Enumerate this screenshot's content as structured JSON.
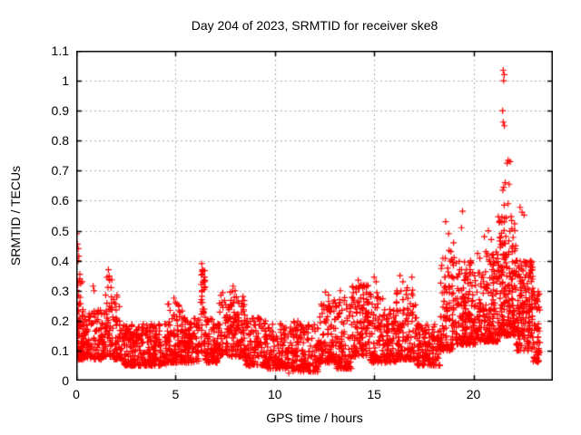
{
  "page": {
    "background_color": "#ffffff",
    "text_color": "#000000"
  },
  "chart_data": {
    "type": "scatter",
    "title": "Day 204 of 2023, SRMTID for receiver ske8",
    "xlabel": "GPS time / hours",
    "ylabel": "SRMTID / TECUs",
    "xlim": [
      0,
      24
    ],
    "ylim": [
      0,
      1.1
    ],
    "xticks": [
      0,
      5,
      10,
      15,
      20
    ],
    "xtick_labels": [
      "0",
      "5",
      "10",
      "15",
      "20"
    ],
    "yticks": [
      0,
      0.1,
      0.2,
      0.3,
      0.4,
      0.5,
      0.6,
      0.7,
      0.8,
      0.9,
      1,
      1.1
    ],
    "ytick_labels": [
      "0",
      "0.1",
      "0.2",
      "0.3",
      "0.4",
      "0.5",
      "0.6",
      "0.7",
      "0.8",
      "0.9",
      "1",
      "1.1"
    ],
    "grid": true,
    "grid_style": "dotted",
    "grid_color": "#b0b0b0",
    "frame_color": "#000000",
    "legend": "none",
    "marker": "plus",
    "marker_color": "#ff0000",
    "marker_size": 7,
    "seed": 20230204,
    "dense_clusters": [
      {
        "x_start": 0.0,
        "x_end": 0.35,
        "count": 50,
        "y_min": 0.08,
        "y_max": 0.34,
        "skew": 1.6
      },
      {
        "x_start": 0.0,
        "x_end": 1.0,
        "count": 110,
        "y_min": 0.07,
        "y_max": 0.24,
        "skew": 1.7
      },
      {
        "x_start": 1.0,
        "x_end": 1.45,
        "count": 60,
        "y_min": 0.07,
        "y_max": 0.24,
        "skew": 1.8
      },
      {
        "x_start": 1.45,
        "x_end": 1.85,
        "count": 55,
        "y_min": 0.08,
        "y_max": 0.35,
        "skew": 1.6
      },
      {
        "x_start": 1.85,
        "x_end": 2.3,
        "count": 60,
        "y_min": 0.07,
        "y_max": 0.28,
        "skew": 1.9
      },
      {
        "x_start": 2.3,
        "x_end": 4.6,
        "count": 300,
        "y_min": 0.05,
        "y_max": 0.19,
        "skew": 1.6
      },
      {
        "x_start": 4.6,
        "x_end": 5.4,
        "count": 110,
        "y_min": 0.06,
        "y_max": 0.26,
        "skew": 1.9
      },
      {
        "x_start": 5.4,
        "x_end": 6.25,
        "count": 110,
        "y_min": 0.06,
        "y_max": 0.21,
        "skew": 1.7
      },
      {
        "x_start": 6.27,
        "x_end": 6.5,
        "count": 40,
        "y_min": 0.08,
        "y_max": 0.38,
        "skew": 1.4
      },
      {
        "x_start": 6.5,
        "x_end": 7.2,
        "count": 95,
        "y_min": 0.06,
        "y_max": 0.21,
        "skew": 1.7
      },
      {
        "x_start": 7.2,
        "x_end": 8.5,
        "count": 170,
        "y_min": 0.08,
        "y_max": 0.3,
        "skew": 1.7
      },
      {
        "x_start": 8.5,
        "x_end": 9.6,
        "count": 130,
        "y_min": 0.05,
        "y_max": 0.21,
        "skew": 1.7
      },
      {
        "x_start": 9.6,
        "x_end": 10.9,
        "count": 150,
        "y_min": 0.04,
        "y_max": 0.19,
        "skew": 1.7
      },
      {
        "x_start": 10.9,
        "x_end": 12.2,
        "count": 150,
        "y_min": 0.03,
        "y_max": 0.2,
        "skew": 1.6
      },
      {
        "x_start": 12.2,
        "x_end": 13.05,
        "count": 110,
        "y_min": 0.06,
        "y_max": 0.27,
        "skew": 1.8
      },
      {
        "x_start": 13.05,
        "x_end": 13.85,
        "count": 95,
        "y_min": 0.04,
        "y_max": 0.28,
        "skew": 2.0
      },
      {
        "x_start": 13.85,
        "x_end": 14.75,
        "count": 130,
        "y_min": 0.08,
        "y_max": 0.32,
        "skew": 1.5
      },
      {
        "x_start": 14.75,
        "x_end": 15.45,
        "count": 85,
        "y_min": 0.06,
        "y_max": 0.3,
        "skew": 1.8
      },
      {
        "x_start": 15.45,
        "x_end": 16.1,
        "count": 85,
        "y_min": 0.06,
        "y_max": 0.24,
        "skew": 1.7
      },
      {
        "x_start": 16.1,
        "x_end": 17.15,
        "count": 130,
        "y_min": 0.07,
        "y_max": 0.31,
        "skew": 1.7
      },
      {
        "x_start": 17.15,
        "x_end": 18.35,
        "count": 140,
        "y_min": 0.05,
        "y_max": 0.19,
        "skew": 1.7
      },
      {
        "x_start": 18.35,
        "x_end": 19.15,
        "count": 115,
        "y_min": 0.1,
        "y_max": 0.44,
        "skew": 1.8
      },
      {
        "x_start": 19.15,
        "x_end": 20.2,
        "count": 170,
        "y_min": 0.12,
        "y_max": 0.4,
        "skew": 1.8
      },
      {
        "x_start": 20.2,
        "x_end": 21.25,
        "count": 175,
        "y_min": 0.13,
        "y_max": 0.44,
        "skew": 1.8
      },
      {
        "x_start": 21.25,
        "x_end": 22.15,
        "count": 200,
        "y_min": 0.15,
        "y_max": 0.55,
        "skew": 1.7
      },
      {
        "x_start": 22.15,
        "x_end": 23.0,
        "count": 170,
        "y_min": 0.1,
        "y_max": 0.4,
        "skew": 1.5
      },
      {
        "x_start": 23.0,
        "x_end": 23.35,
        "count": 55,
        "y_min": 0.06,
        "y_max": 0.3,
        "skew": 1.6
      }
    ],
    "outlier_points": [
      [
        0.03,
        0.49
      ],
      [
        0.06,
        0.455
      ],
      [
        0.1,
        0.44
      ],
      [
        0.13,
        0.415
      ],
      [
        0.09,
        0.4
      ],
      [
        0.18,
        0.355
      ],
      [
        0.3,
        0.33
      ],
      [
        0.85,
        0.315
      ],
      [
        0.9,
        0.3
      ],
      [
        1.55,
        0.345
      ],
      [
        1.62,
        0.37
      ],
      [
        1.68,
        0.335
      ],
      [
        1.75,
        0.31
      ],
      [
        2.05,
        0.285
      ],
      [
        4.92,
        0.275
      ],
      [
        5.0,
        0.26
      ],
      [
        6.32,
        0.39
      ],
      [
        6.35,
        0.37
      ],
      [
        6.3,
        0.352
      ],
      [
        6.42,
        0.335
      ],
      [
        6.45,
        0.31
      ],
      [
        7.75,
        0.295
      ],
      [
        7.9,
        0.315
      ],
      [
        8.0,
        0.3
      ],
      [
        12.55,
        0.295
      ],
      [
        12.7,
        0.285
      ],
      [
        13.3,
        0.3
      ],
      [
        14.1,
        0.31
      ],
      [
        14.2,
        0.335
      ],
      [
        14.35,
        0.32
      ],
      [
        15.0,
        0.345
      ],
      [
        15.1,
        0.33
      ],
      [
        16.3,
        0.35
      ],
      [
        16.45,
        0.33
      ],
      [
        16.9,
        0.345
      ],
      [
        18.6,
        0.53
      ],
      [
        18.75,
        0.49
      ],
      [
        19.0,
        0.46
      ],
      [
        19.4,
        0.51
      ],
      [
        19.45,
        0.565
      ],
      [
        20.55,
        0.48
      ],
      [
        20.75,
        0.5
      ],
      [
        20.9,
        0.47
      ],
      [
        21.5,
        1.035
      ],
      [
        21.55,
        1.02
      ],
      [
        21.52,
        1.0
      ],
      [
        21.47,
        0.9
      ],
      [
        21.5,
        0.862
      ],
      [
        21.56,
        0.85
      ],
      [
        21.7,
        0.725
      ],
      [
        21.75,
        0.735
      ],
      [
        21.85,
        0.73
      ],
      [
        21.48,
        0.635
      ],
      [
        21.52,
        0.645
      ],
      [
        21.6,
        0.66
      ],
      [
        21.8,
        0.655
      ],
      [
        21.55,
        0.585
      ],
      [
        21.75,
        0.59
      ],
      [
        22.35,
        0.578
      ],
      [
        22.45,
        0.562
      ],
      [
        22.55,
        0.552
      ],
      [
        10.7,
        0.025
      ],
      [
        11.45,
        0.03
      ],
      [
        13.6,
        0.04
      ],
      [
        23.2,
        0.065
      ],
      [
        23.3,
        0.1
      ]
    ]
  }
}
